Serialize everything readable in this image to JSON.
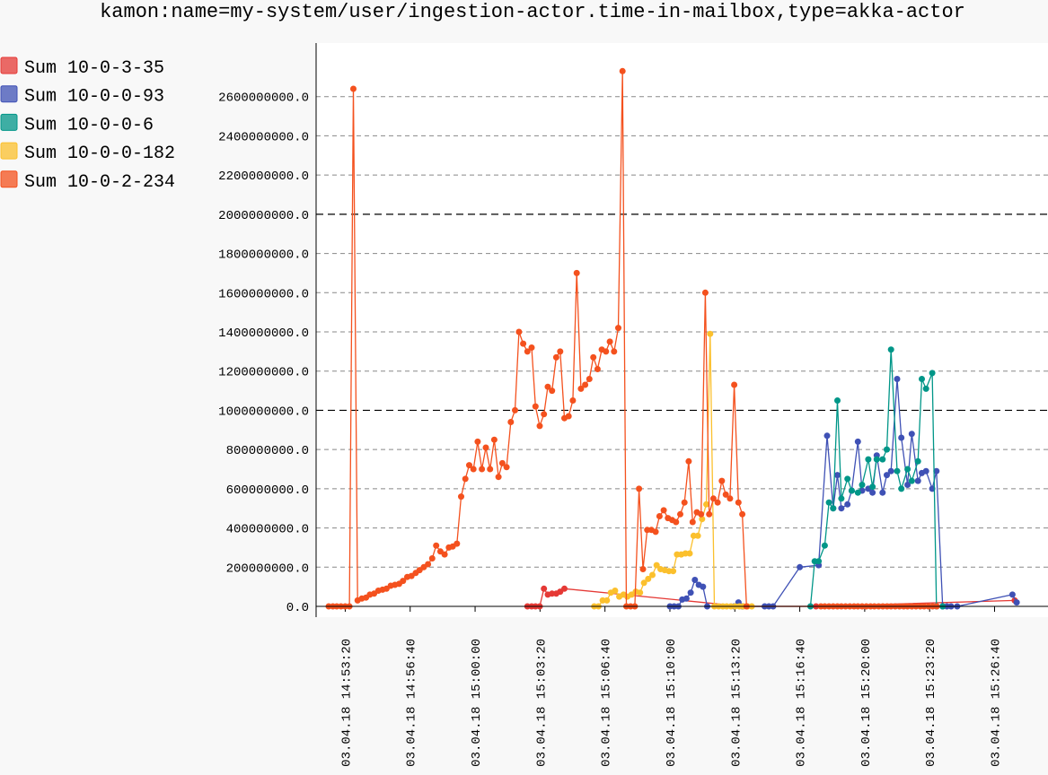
{
  "chart_data": {
    "type": "line",
    "title": "kamon:name=my-system/user/ingestion-actor.time-in-mailbox,type=akka-actor",
    "xlabel": "",
    "ylabel": "",
    "ylim": [
      0,
      2800000000
    ],
    "xlim": [
      "2018-04-03 14:52:29",
      "2018-04-03 15:28:32"
    ],
    "y_ticks": [
      "0.0",
      "200000000.0",
      "400000000.0",
      "600000000.0",
      "800000000.0",
      "1000000000.0",
      "1200000000.0",
      "1400000000.0",
      "1600000000.0",
      "1800000000.0",
      "2000000000.0",
      "2200000000.0",
      "2400000000.0",
      "2600000000.0"
    ],
    "x_ticks": [
      {
        "t": "2018-04-03 14:53:20",
        "label": "03.04.18 14:53:20"
      },
      {
        "t": "2018-04-03 14:56:40",
        "label": "03.04.18 14:56:40"
      },
      {
        "t": "2018-04-03 15:00:00",
        "label": "03.04.18 15:00:00"
      },
      {
        "t": "2018-04-03 15:03:20",
        "label": "03.04.18 15:03:20"
      },
      {
        "t": "2018-04-03 15:06:40",
        "label": "03.04.18 15:06:40"
      },
      {
        "t": "2018-04-03 15:10:00",
        "label": "03.04.18 15:10:00"
      },
      {
        "t": "2018-04-03 15:13:20",
        "label": "03.04.18 15:13:20"
      },
      {
        "t": "2018-04-03 15:16:40",
        "label": "03.04.18 15:16:40"
      },
      {
        "t": "2018-04-03 15:20:00",
        "label": "03.04.18 15:20:00"
      },
      {
        "t": "2018-04-03 15:23:20",
        "label": "03.04.18 15:23:20"
      },
      {
        "t": "2018-04-03 15:26:40",
        "label": "03.04.18 15:26:40"
      }
    ],
    "grid": true,
    "legend_position": "top-left",
    "series": [
      {
        "name": "Sum 10-0-3-35",
        "color": "#e53935",
        "x": [
          "2018-04-03 15:02:41",
          "2018-04-03 15:02:54",
          "2018-04-03 15:03:06",
          "2018-04-03 15:03:19",
          "2018-04-03 15:03:32",
          "2018-04-03 15:03:44",
          "2018-04-03 15:03:57",
          "2018-04-03 15:04:10",
          "2018-04-03 15:04:22",
          "2018-04-03 15:04:35",
          "2018-04-03 15:13:44",
          "2018-04-03 15:17:30",
          "2018-04-03 15:27:42"
        ],
        "y": [
          0,
          0,
          0,
          0,
          90000000,
          60000000,
          65000000,
          65000000,
          75000000,
          90000000,
          0,
          0,
          30000000
        ]
      },
      {
        "name": "Sum 10-0-0-93",
        "color": "#3f51b5",
        "x": [
          "2018-04-03 15:10:00",
          "2018-04-03 15:10:13",
          "2018-04-03 15:10:26",
          "2018-04-03 15:10:38",
          "2018-04-03 15:10:51",
          "2018-04-03 15:11:04",
          "2018-04-03 15:11:17",
          "2018-04-03 15:11:29",
          "2018-04-03 15:11:42",
          "2018-04-03 15:11:55",
          "2018-04-03 15:13:18",
          "2018-04-03 15:13:31",
          "2018-04-03 15:13:44",
          "2018-04-03 15:14:52",
          "2018-04-03 15:15:05",
          "2018-04-03 15:15:18",
          "2018-04-03 15:16:40",
          "2018-04-03 15:17:38",
          "2018-04-03 15:18:04",
          "2018-04-03 15:18:23",
          "2018-04-03 15:18:36",
          "2018-04-03 15:18:48",
          "2018-04-03 15:19:07",
          "2018-04-03 15:19:20",
          "2018-04-03 15:19:39",
          "2018-04-03 15:19:52",
          "2018-04-03 15:20:11",
          "2018-04-03 15:20:24",
          "2018-04-03 15:20:37",
          "2018-04-03 15:20:55",
          "2018-04-03 15:21:08",
          "2018-04-03 15:21:21",
          "2018-04-03 15:21:40",
          "2018-04-03 15:21:53",
          "2018-04-03 15:22:12",
          "2018-04-03 15:22:25",
          "2018-04-03 15:22:44",
          "2018-04-03 15:22:56",
          "2018-04-03 15:23:09",
          "2018-04-03 15:23:28",
          "2018-04-03 15:23:41",
          "2018-04-03 15:24:00",
          "2018-04-03 15:24:13",
          "2018-04-03 15:24:26",
          "2018-04-03 15:24:45",
          "2018-04-03 15:27:35",
          "2018-04-03 15:27:48"
        ],
        "y": [
          0,
          0,
          0,
          35000000,
          40000000,
          70000000,
          135000000,
          110000000,
          100000000,
          0,
          0,
          20000000,
          0,
          0,
          0,
          0,
          200000000,
          210000000,
          870000000,
          500000000,
          670000000,
          500000000,
          520000000,
          590000000,
          840000000,
          590000000,
          600000000,
          580000000,
          770000000,
          580000000,
          670000000,
          690000000,
          1160000000,
          860000000,
          620000000,
          880000000,
          640000000,
          680000000,
          690000000,
          600000000,
          690000000,
          0,
          0,
          0,
          0,
          60000000,
          20000000
        ]
      },
      {
        "name": "Sum 10-0-0-6",
        "color": "#009688",
        "x": [
          "2018-04-03 15:17:13",
          "2018-04-03 15:17:26",
          "2018-04-03 15:17:38",
          "2018-04-03 15:17:57",
          "2018-04-03 15:18:10",
          "2018-04-03 15:18:23",
          "2018-04-03 15:18:36",
          "2018-04-03 15:18:48",
          "2018-04-03 15:19:07",
          "2018-04-03 15:19:20",
          "2018-04-03 15:19:39",
          "2018-04-03 15:19:52",
          "2018-04-03 15:20:11",
          "2018-04-03 15:20:24",
          "2018-04-03 15:20:37",
          "2018-04-03 15:20:55",
          "2018-04-03 15:21:08",
          "2018-04-03 15:21:21",
          "2018-04-03 15:21:40",
          "2018-04-03 15:21:53",
          "2018-04-03 15:22:12",
          "2018-04-03 15:22:25",
          "2018-04-03 15:22:44",
          "2018-04-03 15:22:56",
          "2018-04-03 15:23:09",
          "2018-04-03 15:23:28",
          "2018-04-03 15:23:41",
          "2018-04-03 15:24:00"
        ],
        "y": [
          0,
          230000000,
          230000000,
          310000000,
          530000000,
          500000000,
          1050000000,
          550000000,
          650000000,
          590000000,
          580000000,
          620000000,
          750000000,
          610000000,
          750000000,
          750000000,
          800000000,
          1310000000,
          690000000,
          600000000,
          700000000,
          640000000,
          740000000,
          1160000000,
          1110000000,
          1190000000,
          0,
          0
        ]
      },
      {
        "name": "Sum 10-0-0-182",
        "color": "#fbc02d",
        "x": [
          "2018-04-03 15:06:07",
          "2018-04-03 15:06:20",
          "2018-04-03 15:06:33",
          "2018-04-03 15:06:46",
          "2018-04-03 15:06:58",
          "2018-04-03 15:07:11",
          "2018-04-03 15:07:24",
          "2018-04-03 15:07:37",
          "2018-04-03 15:07:49",
          "2018-04-03 15:08:02",
          "2018-04-03 15:08:15",
          "2018-04-03 15:08:28",
          "2018-04-03 15:08:40",
          "2018-04-03 15:08:53",
          "2018-04-03 15:09:06",
          "2018-04-03 15:09:19",
          "2018-04-03 15:09:31",
          "2018-04-03 15:09:44",
          "2018-04-03 15:09:57",
          "2018-04-03 15:10:10",
          "2018-04-03 15:10:22",
          "2018-04-03 15:10:35",
          "2018-04-03 15:10:48",
          "2018-04-03 15:11:01",
          "2018-04-03 15:11:13",
          "2018-04-03 15:11:26",
          "2018-04-03 15:11:39",
          "2018-04-03 15:11:52",
          "2018-04-03 15:12:04",
          "2018-04-03 15:12:17",
          "2018-04-03 15:12:30",
          "2018-04-03 15:12:43",
          "2018-04-03 15:12:55",
          "2018-04-03 15:13:08",
          "2018-04-03 15:13:21",
          "2018-04-03 15:13:34",
          "2018-04-03 15:13:46",
          "2018-04-03 15:13:59",
          "2018-04-03 15:14:12"
        ],
        "y": [
          0,
          0,
          30000000,
          30000000,
          70000000,
          80000000,
          50000000,
          60000000,
          50000000,
          60000000,
          75000000,
          70000000,
          120000000,
          140000000,
          160000000,
          210000000,
          190000000,
          185000000,
          180000000,
          180000000,
          265000000,
          265000000,
          270000000,
          270000000,
          360000000,
          360000000,
          445000000,
          520000000,
          1390000000,
          0,
          0,
          0,
          0,
          0,
          0,
          0,
          0,
          0,
          0
        ]
      },
      {
        "name": "Sum 10-0-2-234",
        "color": "#f4511e",
        "x": [
          "2018-04-03 14:52:29",
          "2018-04-03 14:52:42",
          "2018-04-03 14:52:54",
          "2018-04-03 14:53:07",
          "2018-04-03 14:53:20",
          "2018-04-03 14:53:33",
          "2018-04-03 14:53:45",
          "2018-04-03 14:53:58",
          "2018-04-03 14:54:11",
          "2018-04-03 14:54:24",
          "2018-04-03 14:54:36",
          "2018-04-03 14:54:49",
          "2018-04-03 14:55:02",
          "2018-04-03 14:55:15",
          "2018-04-03 14:55:27",
          "2018-04-03 14:55:40",
          "2018-04-03 14:55:53",
          "2018-04-03 14:56:06",
          "2018-04-03 14:56:18",
          "2018-04-03 14:56:31",
          "2018-04-03 14:56:44",
          "2018-04-03 14:56:57",
          "2018-04-03 14:57:09",
          "2018-04-03 14:57:22",
          "2018-04-03 14:57:35",
          "2018-04-03 14:57:48",
          "2018-04-03 14:58:00",
          "2018-04-03 14:58:13",
          "2018-04-03 14:58:26",
          "2018-04-03 14:58:39",
          "2018-04-03 14:58:51",
          "2018-04-03 14:59:04",
          "2018-04-03 14:59:17",
          "2018-04-03 14:59:30",
          "2018-04-03 14:59:42",
          "2018-04-03 14:59:55",
          "2018-04-03 15:00:08",
          "2018-04-03 15:00:21",
          "2018-04-03 15:00:33",
          "2018-04-03 15:00:46",
          "2018-04-03 15:00:59",
          "2018-04-03 15:01:12",
          "2018-04-03 15:01:24",
          "2018-04-03 15:01:37",
          "2018-04-03 15:01:50",
          "2018-04-03 15:02:03",
          "2018-04-03 15:02:15",
          "2018-04-03 15:02:28",
          "2018-04-03 15:02:41",
          "2018-04-03 15:02:54",
          "2018-04-03 15:03:06",
          "2018-04-03 15:03:19",
          "2018-04-03 15:03:32",
          "2018-04-03 15:03:44",
          "2018-04-03 15:03:57",
          "2018-04-03 15:04:10",
          "2018-04-03 15:04:22",
          "2018-04-03 15:04:35",
          "2018-04-03 15:04:48",
          "2018-04-03 15:05:01",
          "2018-04-03 15:05:13",
          "2018-04-03 15:05:26",
          "2018-04-03 15:05:39",
          "2018-04-03 15:05:52",
          "2018-04-03 15:06:04",
          "2018-04-03 15:06:17",
          "2018-04-03 15:06:30",
          "2018-04-03 15:06:43",
          "2018-04-03 15:06:55",
          "2018-04-03 15:07:08",
          "2018-04-03 15:07:21",
          "2018-04-03 15:07:34",
          "2018-04-03 15:07:46",
          "2018-04-03 15:07:59",
          "2018-04-03 15:08:12",
          "2018-04-03 15:08:25",
          "2018-04-03 15:08:37",
          "2018-04-03 15:08:50",
          "2018-04-03 15:09:03",
          "2018-04-03 15:09:16",
          "2018-04-03 15:09:28",
          "2018-04-03 15:09:41",
          "2018-04-03 15:09:54",
          "2018-04-03 15:10:07",
          "2018-04-03 15:10:19",
          "2018-04-03 15:10:32",
          "2018-04-03 15:10:45",
          "2018-04-03 15:10:58",
          "2018-04-03 15:11:10",
          "2018-04-03 15:11:23",
          "2018-04-03 15:11:36",
          "2018-04-03 15:11:49",
          "2018-04-03 15:12:01",
          "2018-04-03 15:12:14",
          "2018-04-03 15:12:27",
          "2018-04-03 15:12:40",
          "2018-04-03 15:12:52",
          "2018-04-03 15:13:05",
          "2018-04-03 15:13:18",
          "2018-04-03 15:13:31",
          "2018-04-03 15:13:43",
          "2018-04-03 15:13:56",
          "2018-04-03 15:17:45",
          "2018-04-03 15:17:57",
          "2018-04-03 15:18:10",
          "2018-04-03 15:18:23",
          "2018-04-03 15:18:36",
          "2018-04-03 15:18:48",
          "2018-04-03 15:19:01",
          "2018-04-03 15:19:14",
          "2018-04-03 15:19:27",
          "2018-04-03 15:19:39",
          "2018-04-03 15:19:52",
          "2018-04-03 15:20:05",
          "2018-04-03 15:20:18",
          "2018-04-03 15:20:30",
          "2018-04-03 15:20:43",
          "2018-04-03 15:20:56",
          "2018-04-03 15:21:09",
          "2018-04-03 15:21:21",
          "2018-04-03 15:21:34",
          "2018-04-03 15:21:47",
          "2018-04-03 15:22:00",
          "2018-04-03 15:22:12",
          "2018-04-03 15:22:25",
          "2018-04-03 15:22:38",
          "2018-04-03 15:22:51",
          "2018-04-03 15:23:03",
          "2018-04-03 15:23:16",
          "2018-04-03 15:23:29",
          "2018-04-03 15:23:42"
        ],
        "y": [
          0,
          0,
          0,
          0,
          0,
          0,
          2640000000,
          30000000,
          40000000,
          45000000,
          60000000,
          65000000,
          80000000,
          85000000,
          90000000,
          105000000,
          110000000,
          115000000,
          130000000,
          150000000,
          155000000,
          170000000,
          185000000,
          200000000,
          215000000,
          245000000,
          310000000,
          280000000,
          265000000,
          300000000,
          305000000,
          320000000,
          560000000,
          650000000,
          720000000,
          700000000,
          840000000,
          700000000,
          810000000,
          700000000,
          850000000,
          660000000,
          730000000,
          710000000,
          940000000,
          1000000000,
          1400000000,
          1340000000,
          1300000000,
          1320000000,
          1020000000,
          920000000,
          980000000,
          1120000000,
          1100000000,
          1270000000,
          1300000000,
          960000000,
          970000000,
          1050000000,
          1700000000,
          1110000000,
          1130000000,
          1160000000,
          1270000000,
          1210000000,
          1310000000,
          1300000000,
          1350000000,
          1300000000,
          1420000000,
          2730000000,
          0,
          0,
          0,
          600000000,
          190000000,
          390000000,
          390000000,
          380000000,
          460000000,
          490000000,
          450000000,
          440000000,
          430000000,
          470000000,
          530000000,
          740000000,
          430000000,
          480000000,
          470000000,
          1600000000,
          470000000,
          550000000,
          530000000,
          640000000,
          570000000,
          550000000,
          1130000000,
          530000000,
          470000000,
          0,
          0,
          0,
          0,
          0,
          0,
          0,
          0,
          0,
          0,
          0,
          0,
          0,
          0,
          0,
          0,
          0,
          0,
          0,
          0,
          0,
          0,
          0,
          0,
          0,
          0,
          0,
          0,
          0,
          0
        ]
      }
    ]
  }
}
